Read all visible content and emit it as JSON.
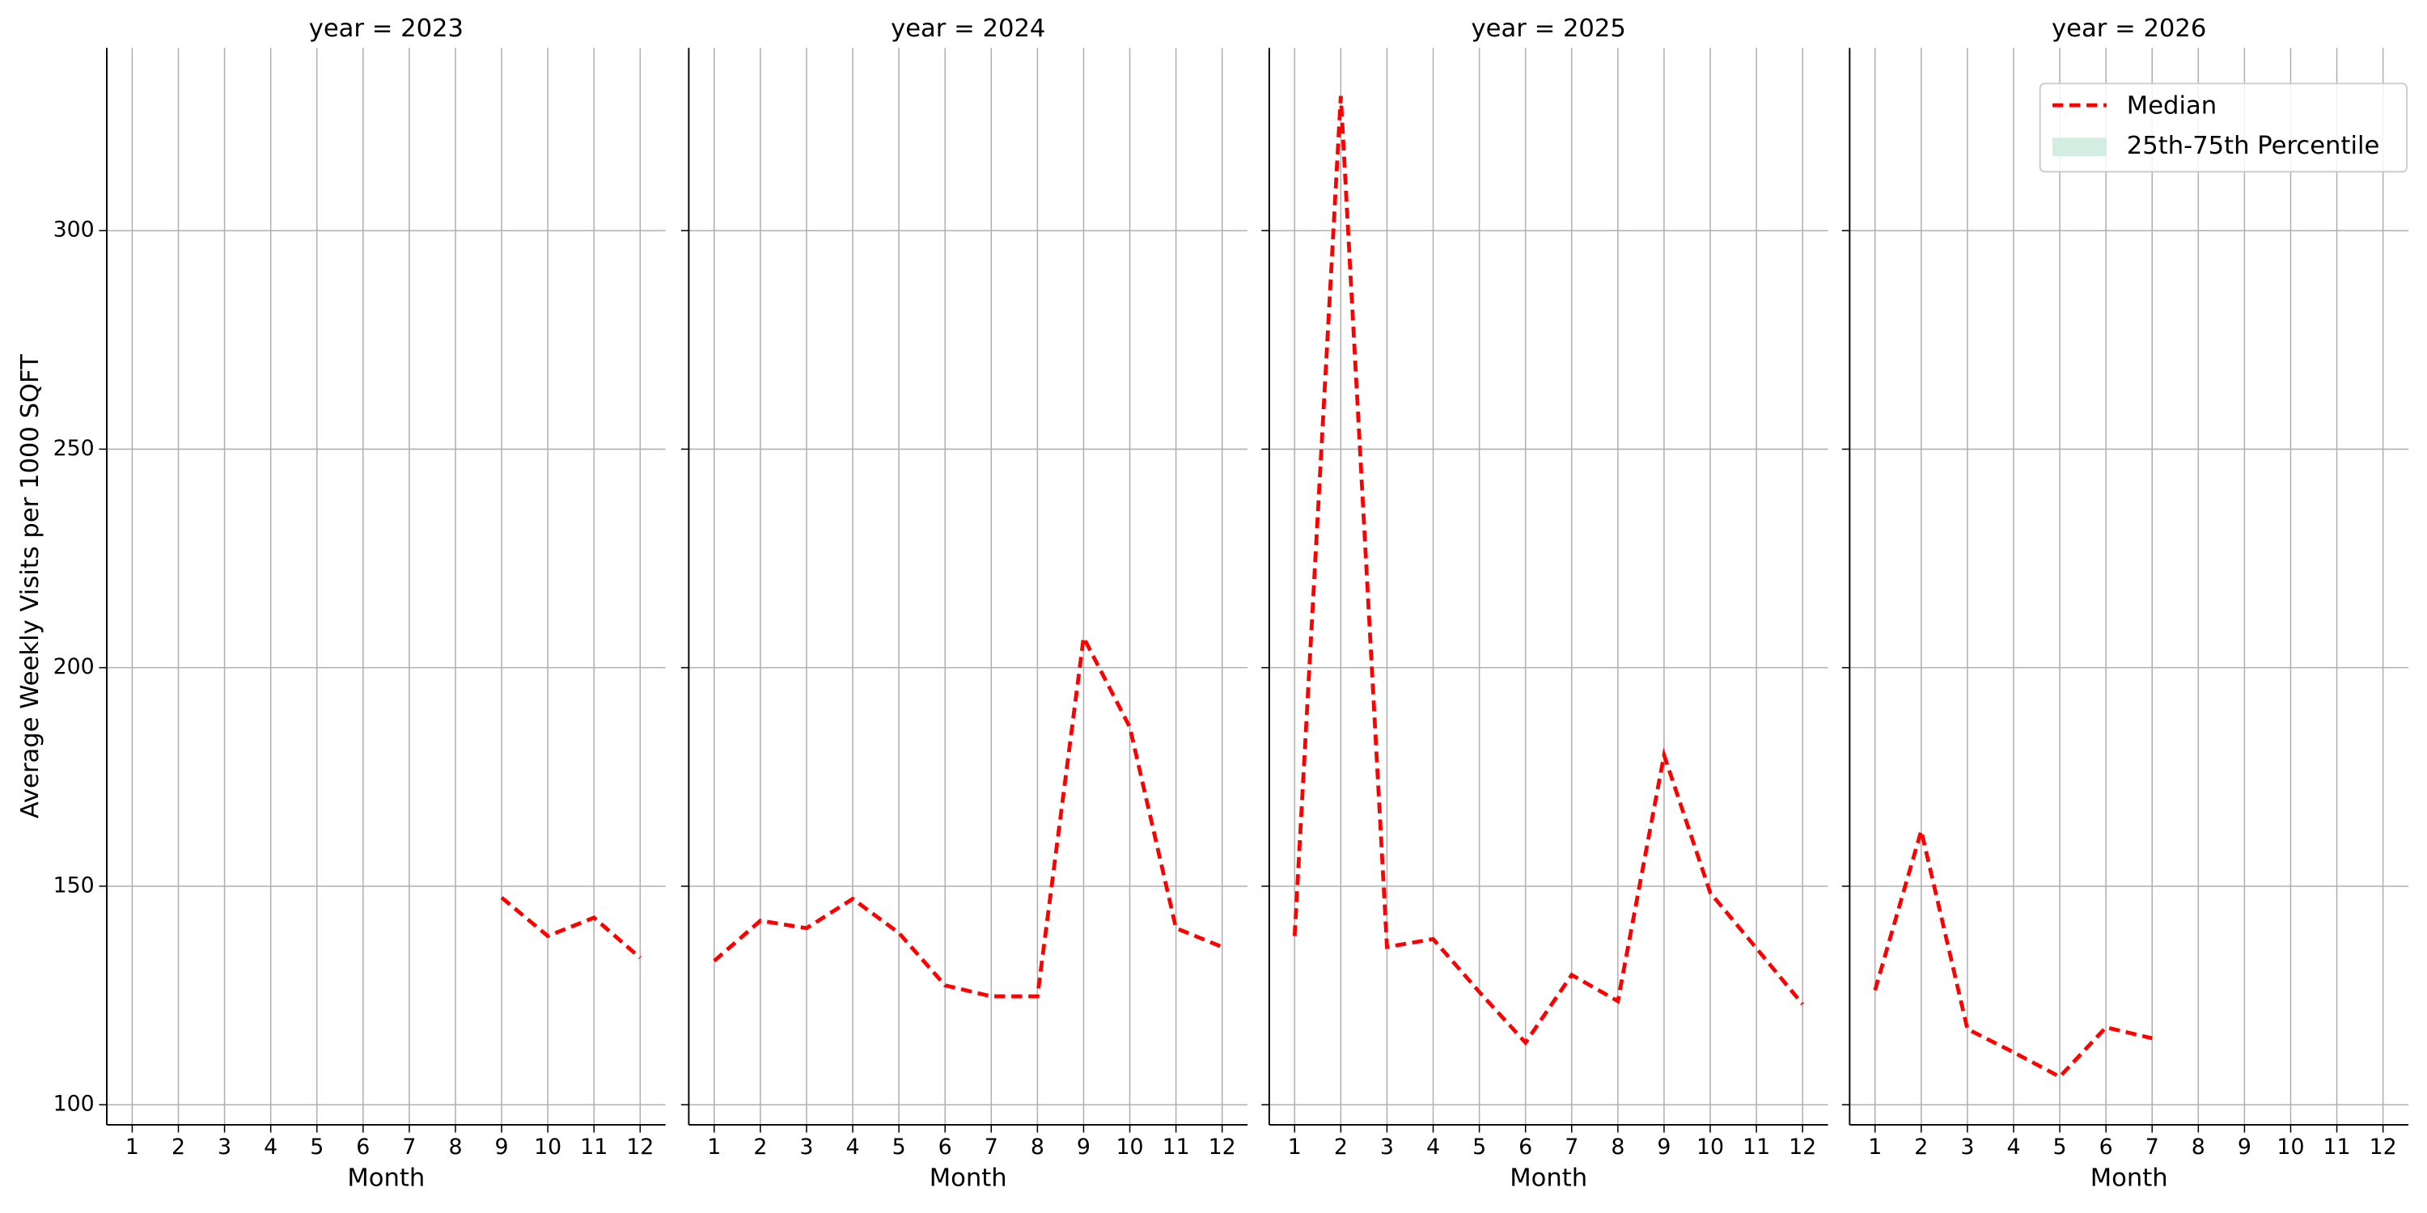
{
  "chart_data": [
    {
      "type": "line",
      "title": "year = 2023",
      "xlabel": "Month",
      "ylabel": "Average Weekly Visits per 1000 SQFT",
      "x": [
        9,
        10,
        11,
        12
      ],
      "series": [
        {
          "name": "Median",
          "color": "#ff0000",
          "values": [
            147.4,
            138.6,
            142.8,
            133.6
          ]
        }
      ],
      "xlim": [
        0.45,
        12.55
      ],
      "xticks": [
        1,
        2,
        3,
        4,
        5,
        6,
        7,
        8,
        9,
        10,
        11,
        12
      ],
      "ylim": [
        95.4,
        341.8
      ],
      "yticks": [
        100,
        150,
        200,
        250,
        300
      ],
      "grid": true
    },
    {
      "type": "line",
      "title": "year = 2024",
      "xlabel": "Month",
      "x": [
        1,
        2,
        3,
        4,
        5,
        6,
        7,
        8,
        9,
        10,
        11,
        12
      ],
      "series": [
        {
          "name": "Median",
          "color": "#ff0000",
          "values": [
            132.9,
            142.1,
            140.4,
            147.1,
            139.3,
            127.3,
            124.8,
            124.8,
            206.9,
            186.4,
            140.4,
            136.1
          ]
        }
      ],
      "xlim": [
        0.45,
        12.55
      ],
      "xticks": [
        1,
        2,
        3,
        4,
        5,
        6,
        7,
        8,
        9,
        10,
        11,
        12
      ],
      "ylim": [
        95.4,
        341.8
      ],
      "yticks": [
        100,
        150,
        200,
        250,
        300
      ],
      "grid": true
    },
    {
      "type": "line",
      "title": "year = 2025",
      "xlabel": "Month",
      "x": [
        1,
        2,
        3,
        4,
        5,
        6,
        7,
        8,
        9,
        10,
        11,
        12
      ],
      "series": [
        {
          "name": "Median",
          "color": "#ff0000",
          "values": [
            138.6,
            330.8,
            136.1,
            137.9,
            125.8,
            114.2,
            129.7,
            123.7,
            180.0,
            148.5,
            135.8,
            123.0
          ]
        }
      ],
      "xlim": [
        0.45,
        12.55
      ],
      "xticks": [
        1,
        2,
        3,
        4,
        5,
        6,
        7,
        8,
        9,
        10,
        11,
        12
      ],
      "ylim": [
        95.4,
        341.8
      ],
      "yticks": [
        100,
        150,
        200,
        250,
        300
      ],
      "grid": true
    },
    {
      "type": "line",
      "title": "year = 2026",
      "xlabel": "Month",
      "x": [
        1,
        2,
        3,
        4,
        5,
        6,
        7
      ],
      "series": [
        {
          "name": "Median",
          "color": "#ff0000",
          "values": [
            126.2,
            162.7,
            117.3,
            112.0,
            106.4,
            117.7,
            115.2
          ]
        }
      ],
      "band": {
        "name": "25th-75th Percentile",
        "color": "#d4ede2"
      },
      "legend": "upper right",
      "xlim": [
        0.45,
        12.55
      ],
      "xticks": [
        1,
        2,
        3,
        4,
        5,
        6,
        7,
        8,
        9,
        10,
        11,
        12
      ],
      "ylim": [
        95.4,
        341.8
      ],
      "yticks": [
        100,
        150,
        200,
        250,
        300
      ],
      "grid": true
    }
  ]
}
